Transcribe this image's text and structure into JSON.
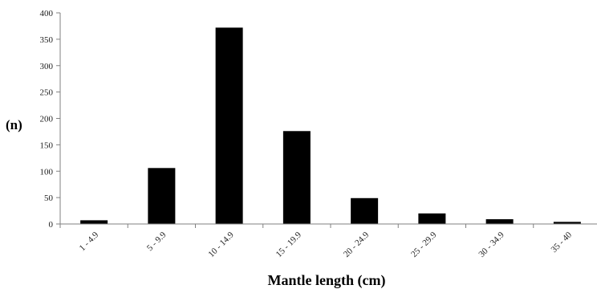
{
  "chart_data": {
    "type": "bar",
    "title": "",
    "xlabel": "Mantle length (cm)",
    "ylabel": "(n)",
    "categories": [
      "1 - 4.9",
      "5 - 9.9",
      "10 - 14.9",
      "15 - 19.9",
      "20 - 24.9",
      "25 - 29.9",
      "30 - 34.9",
      "35 - 40"
    ],
    "values": [
      7,
      106,
      372,
      176,
      49,
      20,
      9,
      4
    ],
    "ylim": [
      0,
      400
    ],
    "yticks": [
      0,
      50,
      100,
      150,
      200,
      250,
      300,
      350,
      400
    ],
    "grid": false,
    "legend": "none",
    "bar_color": "#000000",
    "axis_color": "#808080",
    "background": "#ffffff"
  }
}
